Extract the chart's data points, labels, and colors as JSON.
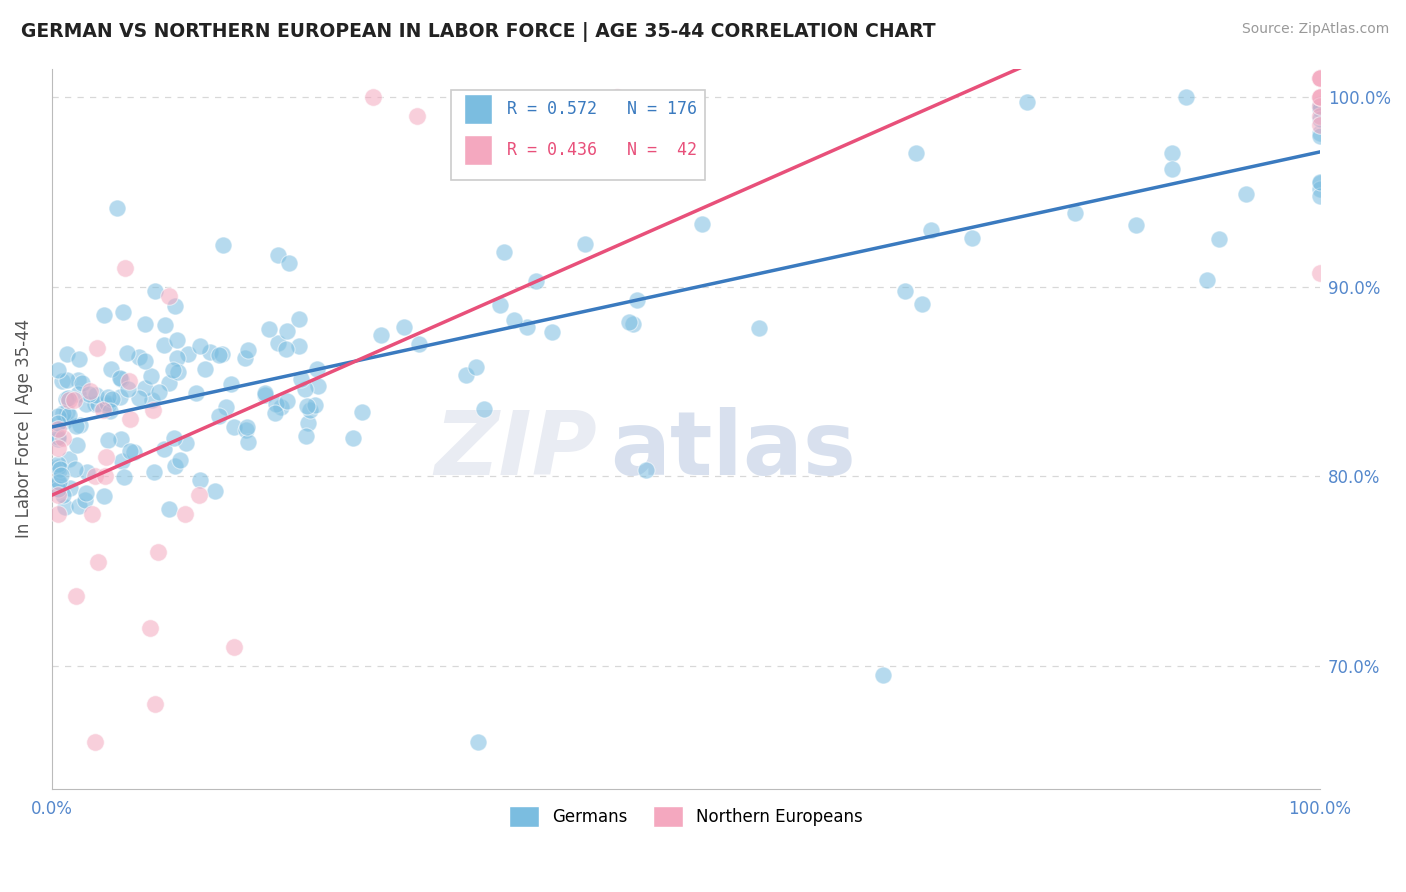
{
  "title": "GERMAN VS NORTHERN EUROPEAN IN LABOR FORCE | AGE 35-44 CORRELATION CHART",
  "source": "Source: ZipAtlas.com",
  "ylabel": "In Labor Force | Age 35-44",
  "xlim": [
    0,
    1
  ],
  "ylim": [
    0.635,
    1.015
  ],
  "yticks": [
    0.7,
    0.8,
    0.9,
    1.0
  ],
  "ytick_labels": [
    "70.0%",
    "80.0%",
    "90.0%",
    "100.0%"
  ],
  "blue_R": 0.572,
  "blue_N": 176,
  "pink_R": 0.436,
  "pink_N": 42,
  "blue_color": "#7bbde0",
  "pink_color": "#f4a8bf",
  "blue_line_color": "#3a7abf",
  "pink_line_color": "#e8507a",
  "title_color": "#222222",
  "axis_label_color": "#555555",
  "tick_color": "#5588cc",
  "background_color": "#ffffff",
  "grid_color": "#d8d8d8",
  "blue_intercept": 0.826,
  "blue_slope": 0.145,
  "pink_intercept": 0.79,
  "pink_slope": 0.295
}
